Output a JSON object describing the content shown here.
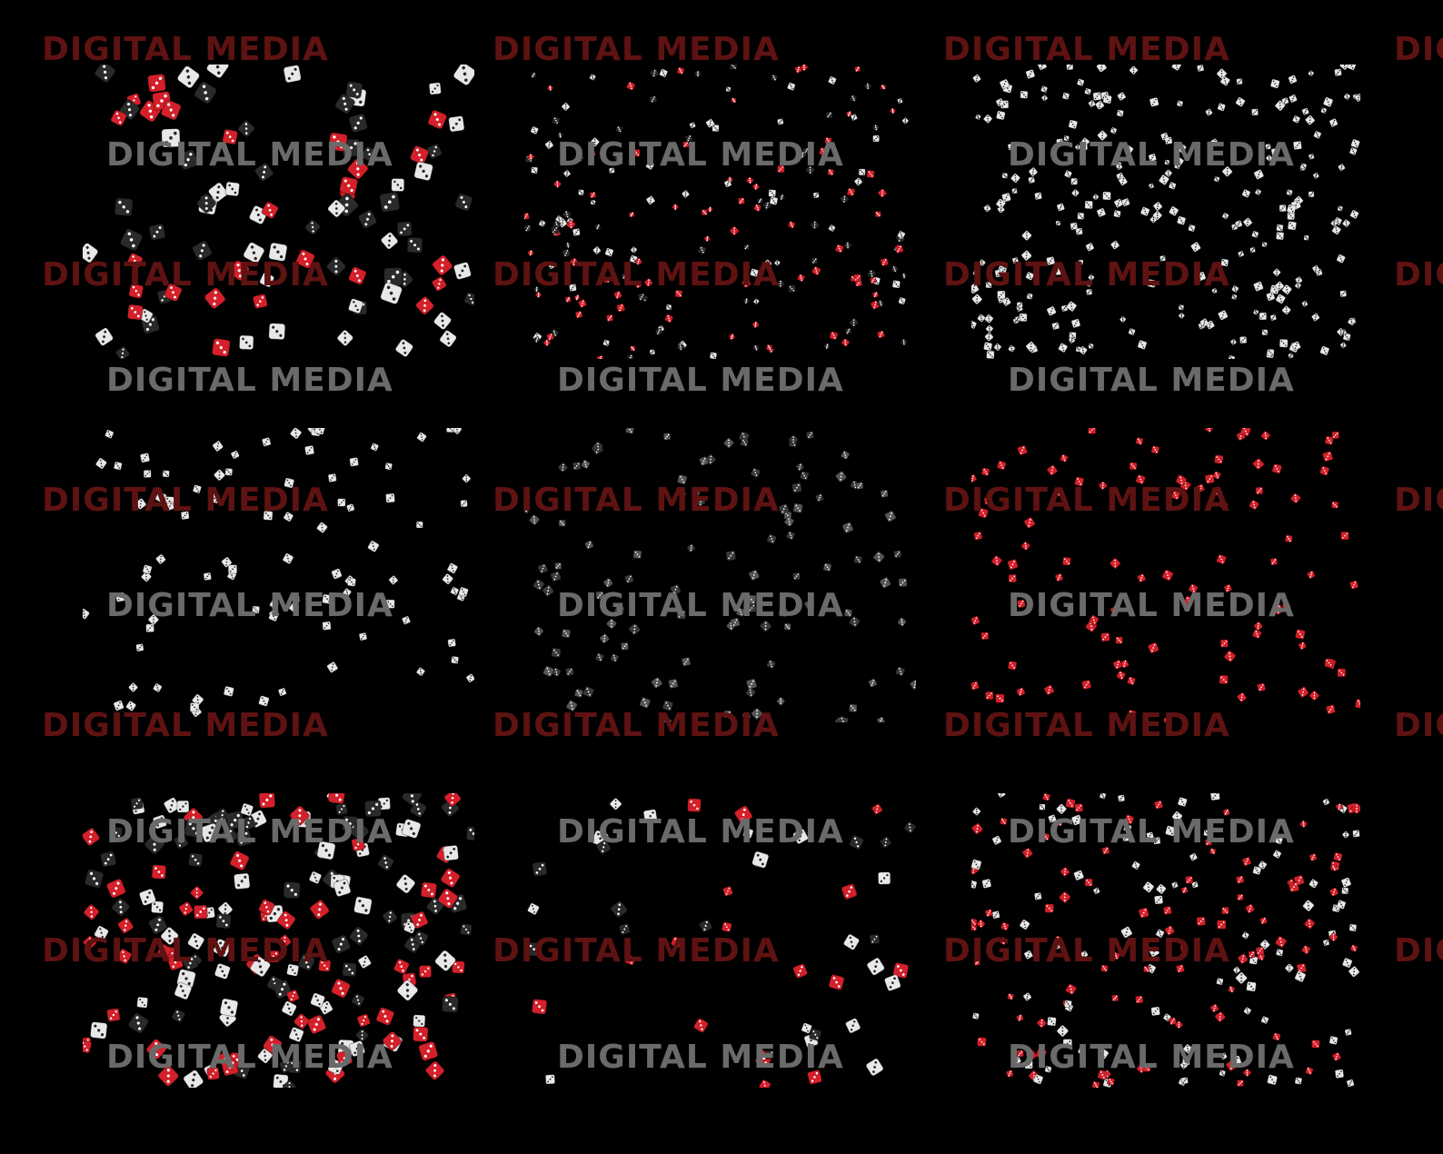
{
  "watermark": {
    "text": "DIGITAL MEDIA"
  }
}
